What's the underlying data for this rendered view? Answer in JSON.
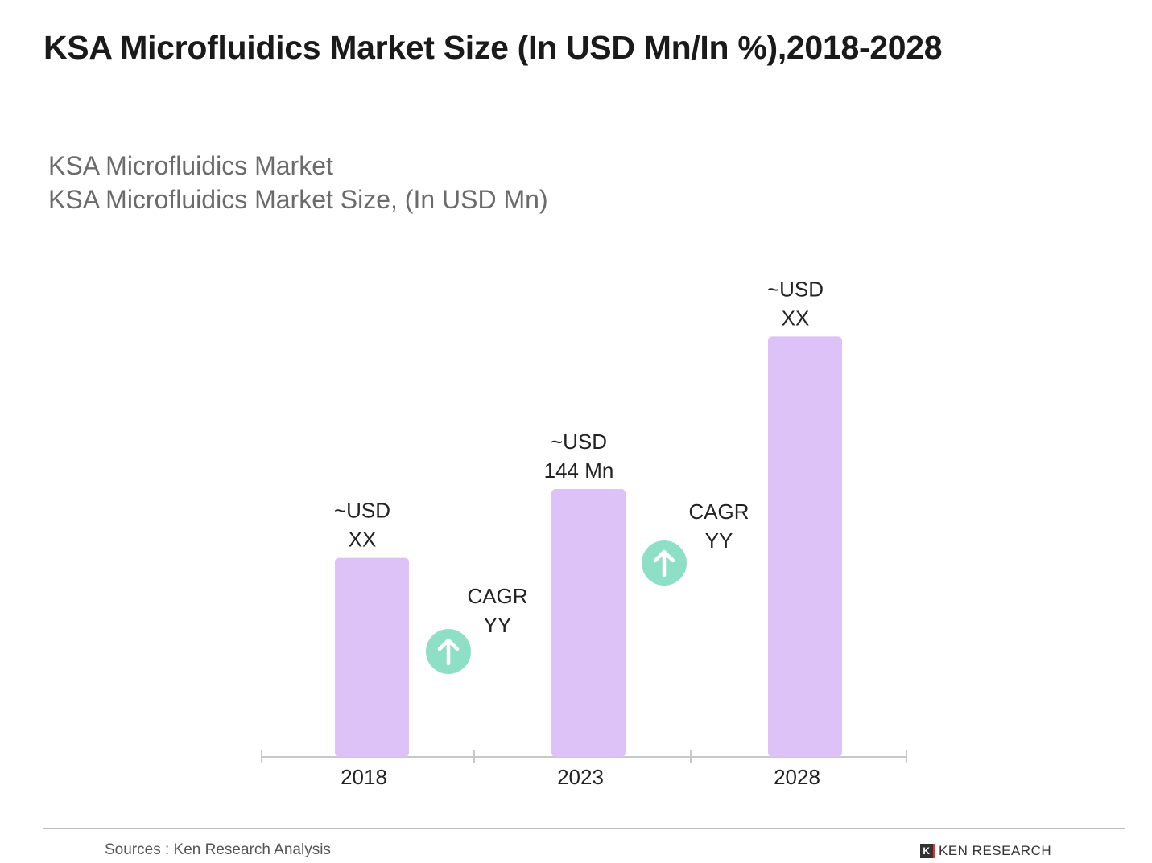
{
  "title": "KSA Microfluidics Market Size (In USD Mn/In %),2018-2028",
  "subtitle1": "KSA Microfluidics Market",
  "subtitle2": "KSA Microfluidics Market Size, (In USD Mn)",
  "source": "Sources : Ken Research Analysis",
  "logo_text": "KEN RESEARCH",
  "chart_data": {
    "type": "bar",
    "categories": [
      "2018",
      "2023",
      "2028"
    ],
    "values": [
      107,
      144,
      226
    ],
    "data_labels": [
      [
        "~USD",
        "XX"
      ],
      [
        "~USD",
        "144 Mn"
      ],
      [
        "~USD",
        "XX"
      ]
    ],
    "annotations": [
      {
        "text": [
          "CAGR",
          "YY"
        ],
        "icon": "arrow-up-circle-icon",
        "between": [
          "2018",
          "2023"
        ]
      },
      {
        "text": [
          "CAGR",
          "YY"
        ],
        "icon": "arrow-up-circle-icon",
        "between": [
          "2023",
          "2028"
        ]
      }
    ],
    "bar_color": "#dcc2f7",
    "icon_color": "#8ddfc6",
    "grid": false,
    "ylim": [
      0,
      240
    ]
  }
}
